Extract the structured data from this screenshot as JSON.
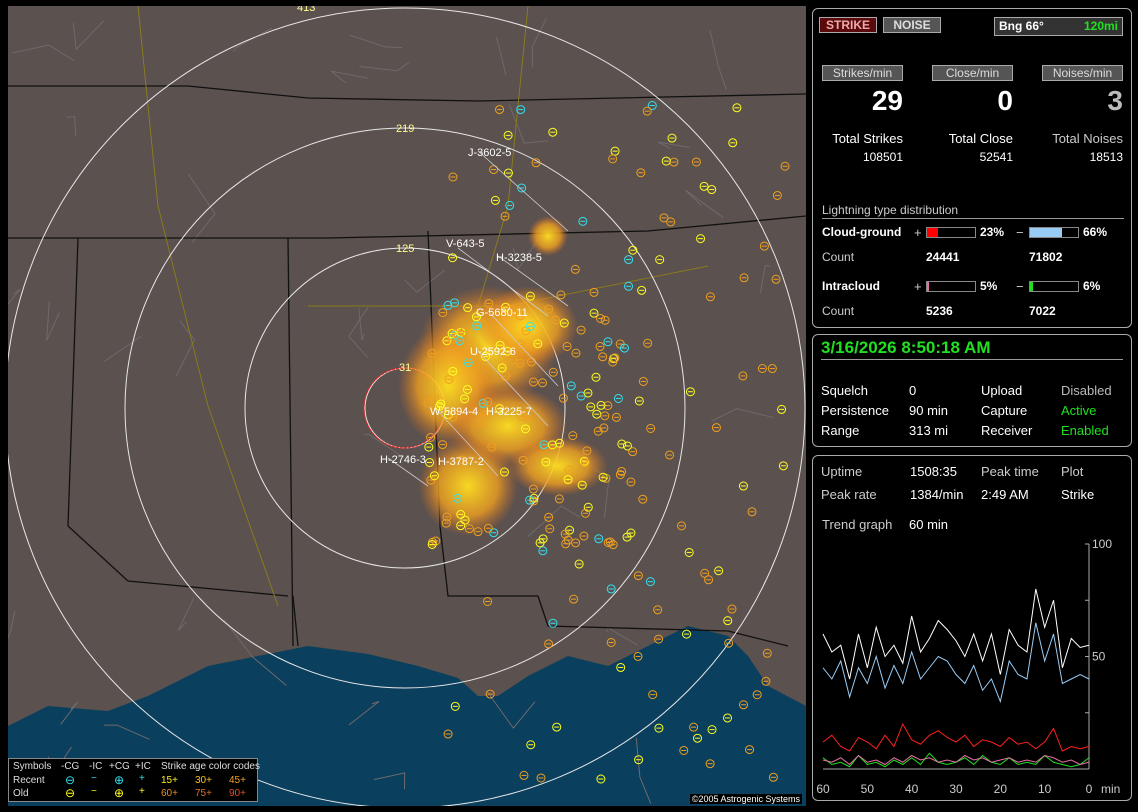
{
  "map": {
    "ring_labels": [
      "413",
      "219",
      "125",
      "31"
    ],
    "track_labels": [
      "J-3602-5",
      "V-643-5",
      "H-3238-5",
      "G-5680-11",
      "U-2592-6",
      "W-5894-4",
      "H-3225-7",
      "H-2746-3",
      "H-3787-2"
    ],
    "copyright": "©2005 Astrogenic Systems",
    "legend": {
      "symbols": "Symbols",
      "neg_cg": "-CG",
      "neg_ic": "-IC",
      "pos_cg": "+CG",
      "pos_ic": "+IC",
      "age_title": "Strike age color codes",
      "recent": "Recent",
      "old": "Old",
      "ages_recent": [
        "15+",
        "30+",
        "45+"
      ],
      "ages_old": [
        "60+",
        "75+",
        "90+"
      ]
    },
    "colors": {
      "land": "#5b514e",
      "water": "#0b3f5e",
      "ring": "#e8e8e8",
      "close_circle": "#ff2020",
      "recent": "#33e0f0",
      "old": "#ffff20"
    }
  },
  "top": {
    "strike_button": "STRIKE",
    "noise_button": "NOISE",
    "bearing": "Bng 66°",
    "distance": "120mi",
    "rates": [
      {
        "label": "Strikes/min",
        "value": "29"
      },
      {
        "label": "Close/min",
        "value": "0"
      },
      {
        "label": "Noises/min",
        "value": "3"
      }
    ],
    "totals": [
      {
        "label": "Total Strikes",
        "value": "108501"
      },
      {
        "label": "Total Close",
        "value": "52541"
      },
      {
        "label": "Total Noises",
        "value": "18513"
      }
    ],
    "dist_title": "Lightning type distribution",
    "cg": {
      "label": "Cloud-ground",
      "plus": "+",
      "minus": "−",
      "pos_pct": "23%",
      "neg_pct": "66%",
      "pos_frac": 0.23,
      "neg_frac": 0.66,
      "count_label": "Count",
      "pos_count": "24441",
      "neg_count": "71802",
      "pos_color": "#ff0000",
      "neg_color": "#99ccf5"
    },
    "ic": {
      "label": "Intracloud",
      "plus": "+",
      "minus": "−",
      "pos_pct": "5%",
      "neg_pct": "6%",
      "pos_frac": 0.05,
      "neg_frac": 0.06,
      "count_label": "Count",
      "pos_count": "5236",
      "neg_count": "7022",
      "pos_color": "#e870a8",
      "neg_color": "#20e020"
    }
  },
  "status": {
    "datetime": "3/16/2026 8:50:18 AM",
    "rows": [
      {
        "k1": "Squelch",
        "v1": "0",
        "k2": "Upload",
        "v2": "Disabled"
      },
      {
        "k1": "Persistence",
        "v1": "90 min",
        "k2": "Capture",
        "v2": "Active"
      },
      {
        "k1": "Range",
        "v1": "313 mi",
        "k2": "Receiver",
        "v2": "Enabled"
      }
    ]
  },
  "stats": {
    "uptime_label": "Uptime",
    "uptime": "1508:35",
    "peak_time_label": "Peak time",
    "plot_label": "Plot",
    "peak_rate_label": "Peak rate",
    "peak_rate": "1384/min",
    "peak_time": "2:49 AM",
    "plot": "Strike",
    "trend_label": "Trend graph",
    "trend": "60 min"
  },
  "chart_data": {
    "type": "line",
    "xlabel": "min",
    "xlim": [
      60,
      0
    ],
    "ylim": [
      0,
      100
    ],
    "xticks": [
      "60",
      "50",
      "40",
      "30",
      "20",
      "10",
      "0"
    ],
    "yticks": [
      "100",
      "50"
    ],
    "x": [
      60,
      58,
      56,
      54,
      52,
      50,
      48,
      46,
      44,
      42,
      40,
      38,
      36,
      34,
      32,
      30,
      28,
      26,
      24,
      22,
      20,
      18,
      16,
      14,
      12,
      10,
      8,
      6,
      4,
      2,
      0
    ],
    "series": [
      {
        "color": "#ffffff",
        "values": [
          60,
          52,
          55,
          40,
          60,
          45,
          63,
          50,
          55,
          47,
          68,
          52,
          58,
          66,
          62,
          57,
          50,
          60,
          48,
          60,
          42,
          62,
          55,
          52,
          80,
          63,
          75,
          45,
          58,
          54,
          55
        ]
      },
      {
        "color": "#99ccf5",
        "values": [
          45,
          40,
          48,
          32,
          45,
          38,
          50,
          36,
          46,
          38,
          52,
          40,
          45,
          50,
          48,
          42,
          38,
          46,
          35,
          40,
          30,
          48,
          42,
          40,
          65,
          48,
          60,
          38,
          40,
          42,
          40
        ]
      },
      {
        "color": "#ff2020",
        "values": [
          12,
          15,
          10,
          8,
          14,
          12,
          9,
          15,
          10,
          20,
          13,
          11,
          15,
          17,
          14,
          12,
          15,
          10,
          13,
          12,
          10,
          14,
          11,
          12,
          9,
          12,
          18,
          8,
          10,
          9,
          10
        ]
      },
      {
        "color": "#e870a8",
        "values": [
          4,
          3,
          5,
          2,
          6,
          3,
          4,
          2,
          5,
          3,
          6,
          4,
          5,
          3,
          4,
          3,
          6,
          4,
          5,
          3,
          4,
          5,
          3,
          4,
          3,
          6,
          5,
          3,
          4,
          2,
          3
        ]
      },
      {
        "color": "#20e020",
        "values": [
          5,
          2,
          3,
          1,
          6,
          2,
          3,
          1,
          4,
          2,
          5,
          2,
          7,
          3,
          2,
          3,
          5,
          2,
          6,
          3,
          2,
          5,
          2,
          3,
          2,
          6,
          3,
          2,
          1,
          2,
          5
        ]
      }
    ]
  }
}
